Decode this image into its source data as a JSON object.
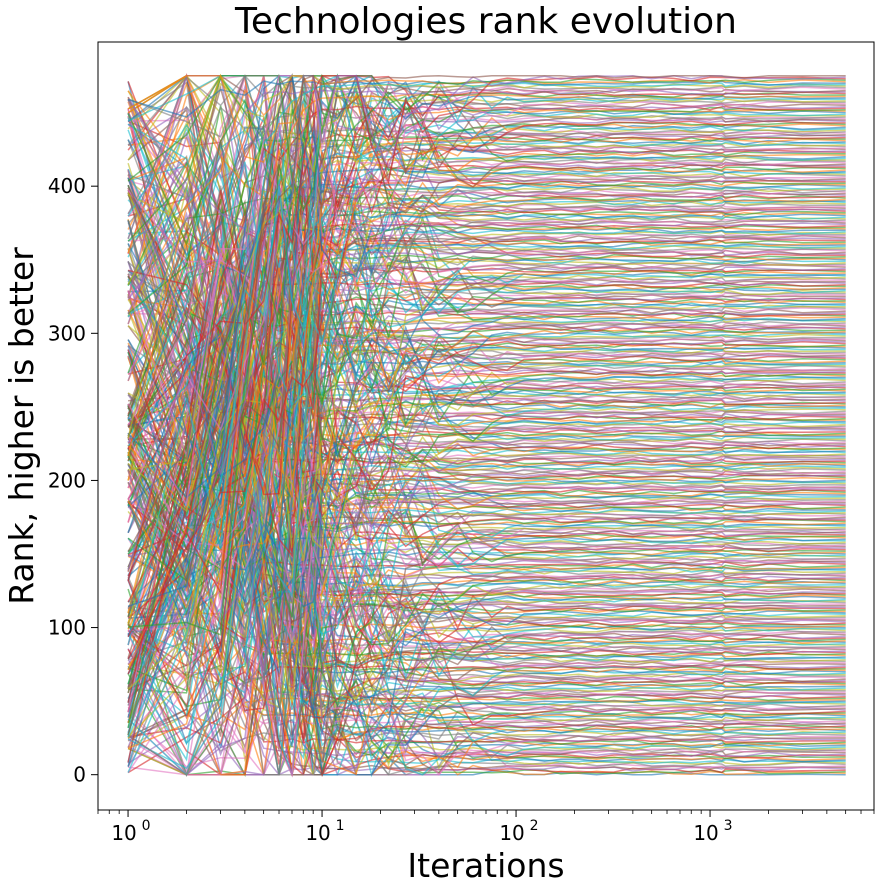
{
  "chart_data": {
    "type": "line",
    "title": "Technologies rank evolution",
    "xlabel": "Iterations",
    "ylabel": "Rank, higher is better",
    "xscale": "log",
    "xlim": [
      0.7,
      7000
    ],
    "ylim": [
      -24,
      498
    ],
    "x_range": [
      1,
      5000
    ],
    "y_range": [
      0,
      475
    ],
    "x_ticks": [
      {
        "value": 1,
        "base": "10",
        "exp": "0"
      },
      {
        "value": 10,
        "base": "10",
        "exp": "1"
      },
      {
        "value": 100,
        "base": "10",
        "exp": "2"
      },
      {
        "value": 1000,
        "base": "10",
        "exp": "3"
      }
    ],
    "y_ticks": [
      {
        "value": 0,
        "label": "0"
      },
      {
        "value": 100,
        "label": "100"
      },
      {
        "value": 200,
        "label": "200"
      },
      {
        "value": 300,
        "label": "300"
      },
      {
        "value": 400,
        "label": "400"
      }
    ],
    "grid": false,
    "legend": "none",
    "series_count": 476,
    "series_rank_range": [
      0,
      475
    ],
    "series_colors": [
      "#1f77b4",
      "#ff7f0e",
      "#2ca02c",
      "#d62728",
      "#9467bd",
      "#8c564b",
      "#e377c2",
      "#7f7f7f",
      "#bcbd22",
      "#17becf"
    ]
  }
}
